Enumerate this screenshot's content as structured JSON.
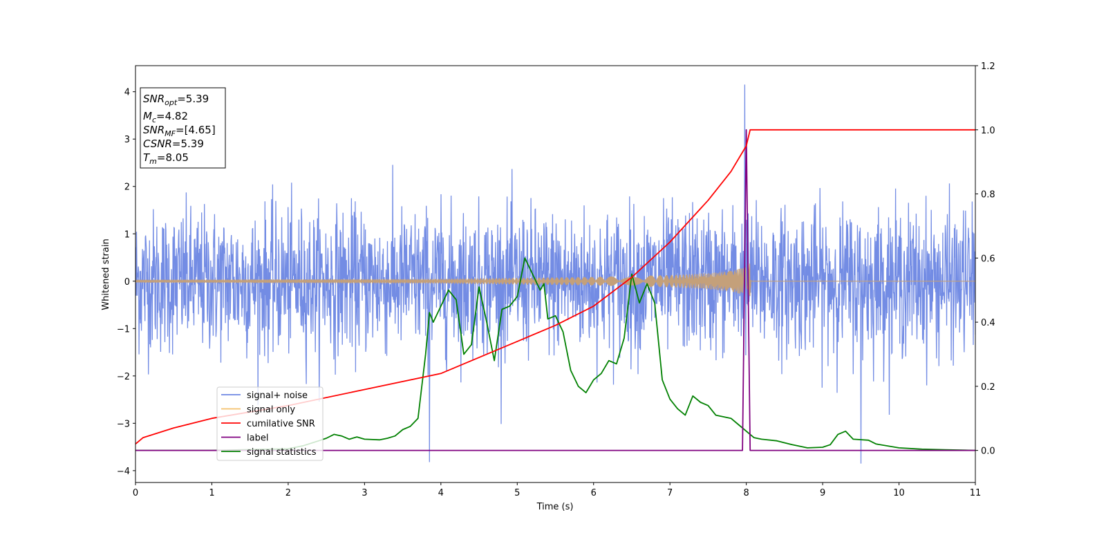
{
  "chart_data": {
    "type": "line",
    "xlabel": "Time (s)",
    "ylabel": "Whitened strain",
    "xlim": [
      0,
      11
    ],
    "ylim_left": [
      -4.25,
      4.55
    ],
    "ylim_right": [
      -0.1,
      1.2
    ],
    "x_ticks": [
      0,
      1,
      2,
      3,
      4,
      5,
      6,
      7,
      8,
      9,
      10,
      11
    ],
    "x_tick_labels": [
      "0",
      "1",
      "2",
      "3",
      "4",
      "5",
      "6",
      "7",
      "8",
      "9",
      "10",
      "11"
    ],
    "y_left_ticks": [
      -4,
      -3,
      -2,
      -1,
      0,
      1,
      2,
      3,
      4
    ],
    "y_left_tick_labels": [
      "−4",
      "−3",
      "−2",
      "−1",
      "0",
      "1",
      "2",
      "3",
      "4"
    ],
    "y_right_ticks": [
      0.0,
      0.2,
      0.4,
      0.6,
      0.8,
      1.0,
      1.2
    ],
    "y_right_tick_labels": [
      "0.0",
      "0.2",
      "0.4",
      "0.6",
      "0.8",
      "1.0",
      "1.2"
    ],
    "grid": false,
    "legend_position": "lower-left",
    "stats_box": {
      "lines": [
        {
          "sym": "SNR",
          "sub": "opt",
          "text": "=5.39"
        },
        {
          "sym": "M",
          "sub": "c",
          "text": "=4.82"
        },
        {
          "sym": "SNR",
          "sub": "MF",
          "text": "=[4.65]"
        },
        {
          "sym": "CSNR",
          "sub": "",
          "text": "=5.39"
        },
        {
          "sym": "T",
          "sub": "m",
          "text": "=8.05"
        }
      ]
    },
    "series": [
      {
        "name": "signal+ noise",
        "axis": "left",
        "color": "#6b86e3",
        "description_values": {
          "mean": 0,
          "std": 0.75,
          "tmin": 0,
          "tmax": 11,
          "spikes": [
            [
              7.98,
              4.15
            ],
            [
              3.85,
              -3.82
            ],
            [
              9.5,
              -3.85
            ]
          ]
        }
      },
      {
        "name": "signal only",
        "axis": "left",
        "color": "#f5c16b",
        "amplitude_points": [
          [
            0,
            0.03
          ],
          [
            2,
            0.04
          ],
          [
            4,
            0.05
          ],
          [
            5,
            0.07
          ],
          [
            6,
            0.09
          ],
          [
            7,
            0.13
          ],
          [
            7.5,
            0.17
          ],
          [
            7.8,
            0.22
          ],
          [
            8.0,
            0.3
          ],
          [
            8.05,
            0.4
          ],
          [
            8.06,
            0.0
          ],
          [
            11,
            0.0
          ]
        ]
      },
      {
        "name": "cumilative SNR",
        "axis": "right",
        "color": "#ff0000",
        "points": [
          [
            0,
            0.02
          ],
          [
            0.1,
            0.04
          ],
          [
            0.5,
            0.07
          ],
          [
            1,
            0.1
          ],
          [
            2,
            0.14
          ],
          [
            3,
            0.19
          ],
          [
            4,
            0.24
          ],
          [
            5,
            0.34
          ],
          [
            5.5,
            0.39
          ],
          [
            6,
            0.45
          ],
          [
            6.5,
            0.54
          ],
          [
            7,
            0.65
          ],
          [
            7.5,
            0.78
          ],
          [
            7.8,
            0.87
          ],
          [
            8.0,
            0.95
          ],
          [
            8.05,
            1.0
          ],
          [
            11,
            1.0
          ]
        ]
      },
      {
        "name": "label",
        "axis": "right",
        "color": "#800080",
        "points": [
          [
            0,
            0.0
          ],
          [
            7.95,
            0.0
          ],
          [
            8.0,
            1.0
          ],
          [
            8.05,
            0.0
          ],
          [
            11,
            0.0
          ]
        ]
      },
      {
        "name": "signal statistics",
        "axis": "right",
        "color": "#008000",
        "points": [
          [
            0,
            0.0
          ],
          [
            1.0,
            0.0
          ],
          [
            2.0,
            0.005
          ],
          [
            2.2,
            0.015
          ],
          [
            2.4,
            0.03
          ],
          [
            2.5,
            0.038
          ],
          [
            2.6,
            0.05
          ],
          [
            2.7,
            0.045
          ],
          [
            2.8,
            0.035
          ],
          [
            2.9,
            0.042
          ],
          [
            3.0,
            0.035
          ],
          [
            3.2,
            0.033
          ],
          [
            3.3,
            0.038
          ],
          [
            3.4,
            0.045
          ],
          [
            3.5,
            0.065
          ],
          [
            3.6,
            0.075
          ],
          [
            3.7,
            0.1
          ],
          [
            3.8,
            0.3
          ],
          [
            3.85,
            0.43
          ],
          [
            3.9,
            0.4
          ],
          [
            4.0,
            0.45
          ],
          [
            4.1,
            0.5
          ],
          [
            4.2,
            0.47
          ],
          [
            4.3,
            0.3
          ],
          [
            4.4,
            0.33
          ],
          [
            4.5,
            0.51
          ],
          [
            4.6,
            0.4
          ],
          [
            4.7,
            0.28
          ],
          [
            4.8,
            0.44
          ],
          [
            4.9,
            0.45
          ],
          [
            5.0,
            0.48
          ],
          [
            5.1,
            0.6
          ],
          [
            5.2,
            0.55
          ],
          [
            5.3,
            0.5
          ],
          [
            5.35,
            0.52
          ],
          [
            5.4,
            0.41
          ],
          [
            5.5,
            0.42
          ],
          [
            5.6,
            0.37
          ],
          [
            5.7,
            0.25
          ],
          [
            5.8,
            0.2
          ],
          [
            5.9,
            0.18
          ],
          [
            6.0,
            0.22
          ],
          [
            6.1,
            0.24
          ],
          [
            6.2,
            0.28
          ],
          [
            6.3,
            0.27
          ],
          [
            6.4,
            0.35
          ],
          [
            6.5,
            0.55
          ],
          [
            6.6,
            0.46
          ],
          [
            6.7,
            0.52
          ],
          [
            6.8,
            0.46
          ],
          [
            6.9,
            0.22
          ],
          [
            7.0,
            0.16
          ],
          [
            7.1,
            0.13
          ],
          [
            7.2,
            0.11
          ],
          [
            7.3,
            0.17
          ],
          [
            7.4,
            0.15
          ],
          [
            7.5,
            0.14
          ],
          [
            7.6,
            0.11
          ],
          [
            7.8,
            0.1
          ],
          [
            7.9,
            0.08
          ],
          [
            8.1,
            0.04
          ],
          [
            8.2,
            0.035
          ],
          [
            8.4,
            0.03
          ],
          [
            8.6,
            0.018
          ],
          [
            8.8,
            0.008
          ],
          [
            9.0,
            0.01
          ],
          [
            9.1,
            0.018
          ],
          [
            9.2,
            0.05
          ],
          [
            9.3,
            0.06
          ],
          [
            9.4,
            0.035
          ],
          [
            9.6,
            0.032
          ],
          [
            9.7,
            0.02
          ],
          [
            10.0,
            0.008
          ],
          [
            10.3,
            0.004
          ],
          [
            10.6,
            0.002
          ],
          [
            11.0,
            0.0
          ]
        ]
      }
    ]
  }
}
